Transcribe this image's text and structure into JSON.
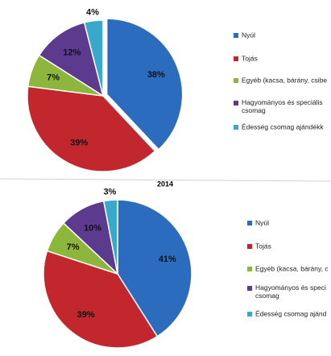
{
  "chart_data": [
    {
      "type": "pie",
      "categories": [
        "Nyúl",
        "Tojás",
        "Egyéb (kacsa, bárány, csibe",
        "Hagyományos és speciális csomag",
        "Édesség csomag ajándékk"
      ],
      "values": [
        38,
        39,
        7,
        12,
        4
      ],
      "value_labels": [
        "38%",
        "39%",
        "7%",
        "12%",
        "4%"
      ],
      "colors": [
        "#2b6cbf",
        "#c1272d",
        "#8db63c",
        "#5c3b8e",
        "#39a9cb"
      ]
    },
    {
      "type": "pie",
      "title": "2014",
      "categories": [
        "Nyúl",
        "Tojás",
        "Egyéb (kacsa, bárány, c",
        "Hagyományos és speci csomag",
        "Édesség csomag ajánd"
      ],
      "values": [
        41,
        39,
        7,
        10,
        3
      ],
      "value_labels": [
        "41%",
        "39%",
        "7%",
        "10%",
        "3%"
      ],
      "colors": [
        "#2b6cbf",
        "#c1272d",
        "#8db63c",
        "#5c3b8e",
        "#39a9cb"
      ]
    }
  ]
}
